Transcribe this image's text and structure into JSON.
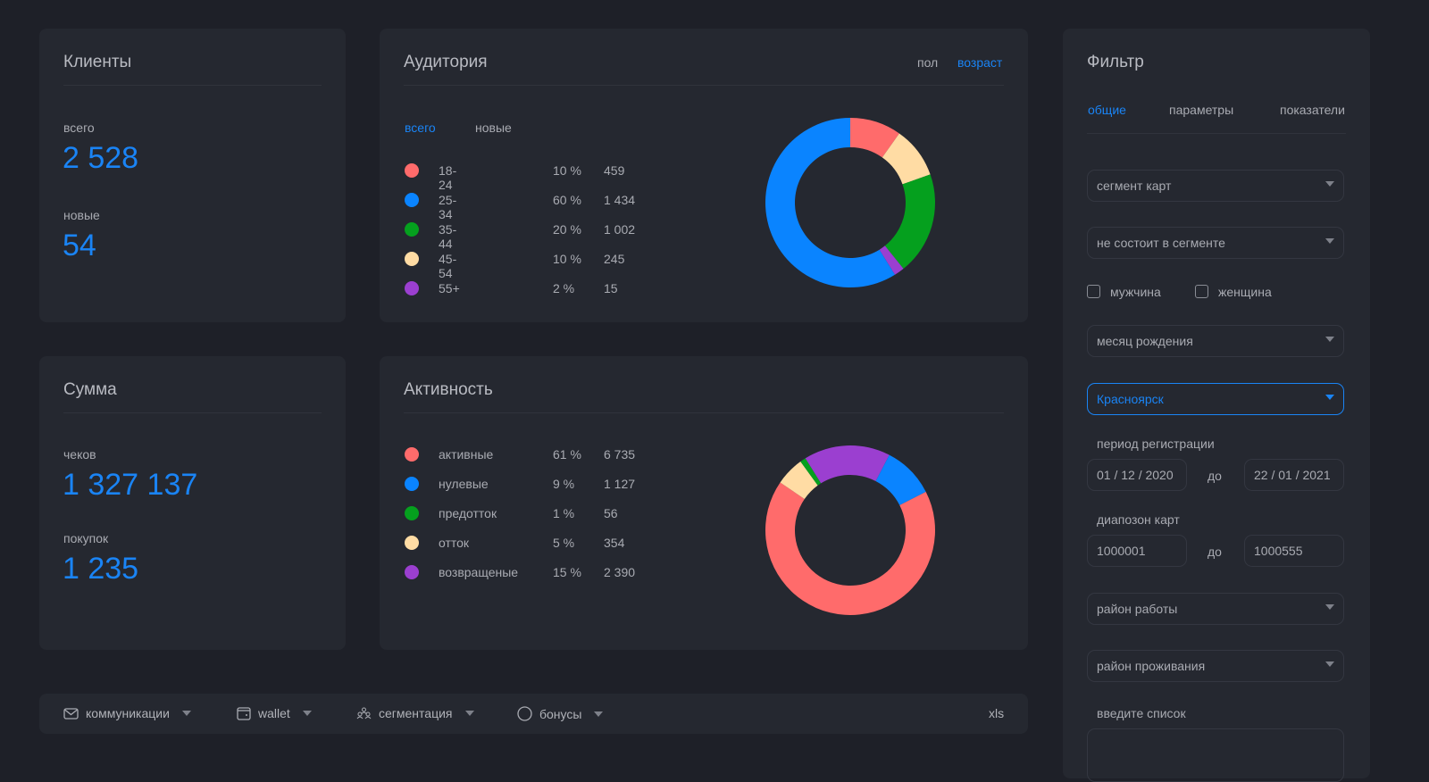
{
  "clients": {
    "title": "Клиенты",
    "total_label": "всего",
    "total": "2 528",
    "new_label": "новые",
    "new": "54"
  },
  "sum": {
    "title": "Сумма",
    "checks_label": "чеков",
    "checks": "1 327 137",
    "purchases_label": "покупок",
    "purchases": "1 235"
  },
  "audience": {
    "title": "Аудитория",
    "switch": [
      "пол",
      "возраст"
    ],
    "tabs": [
      "всего",
      "новые"
    ],
    "rows": [
      {
        "name": "18-24",
        "pct": "10 %",
        "value": "459",
        "color": "#ff6b6b"
      },
      {
        "name": "25-34",
        "pct": "60 %",
        "value": "1 434",
        "color": "#0a84ff"
      },
      {
        "name": "35-44",
        "pct": "20 %",
        "value": "1 002",
        "color": "#05a01e"
      },
      {
        "name": "45-54",
        "pct": "10 %",
        "value": "245",
        "color": "#ffdca4"
      },
      {
        "name": "55+",
        "pct": "2 %",
        "value": "15",
        "color": "#9b3fd0"
      }
    ]
  },
  "activity": {
    "title": "Активность",
    "rows": [
      {
        "name": "активные",
        "pct": "61 %",
        "value": "6 735",
        "color": "#ff6b6b"
      },
      {
        "name": "нулевые",
        "pct": "9 %",
        "value": "1 127",
        "color": "#0a84ff"
      },
      {
        "name": "предотток",
        "pct": "1 %",
        "value": "56",
        "color": "#05a01e"
      },
      {
        "name": "отток",
        "pct": "5 %",
        "value": "354",
        "color": "#ffdca4"
      },
      {
        "name": "возвращеные",
        "pct": "15 %",
        "value": "2 390",
        "color": "#9b3fd0"
      }
    ]
  },
  "chart_data": [
    {
      "type": "pie",
      "title": "Аудитория",
      "categories": [
        "18-24",
        "25-34",
        "35-44",
        "45-54",
        "55+"
      ],
      "values": [
        10,
        60,
        20,
        10,
        2
      ]
    },
    {
      "type": "pie",
      "title": "Активность",
      "categories": [
        "активные",
        "нулевые",
        "предотток",
        "отток",
        "возвращеные"
      ],
      "values": [
        61,
        9,
        1,
        5,
        15
      ]
    }
  ],
  "toolbar": {
    "items": [
      "коммуникации",
      "wallet",
      "сегментация",
      "бонусы"
    ],
    "xls": "xls"
  },
  "filter": {
    "title": "Фильтр",
    "tabs": [
      "общие",
      "параметры",
      "показатели"
    ],
    "segment": "сегмент карт",
    "not_in_segment": "не состоит в сегменте",
    "male": "мужчина",
    "female": "женщина",
    "birth_month": "месяц рождения",
    "city": "Красноярск",
    "reg_period_label": "период регистрации",
    "date_from": "01 / 12 / 2020",
    "to": "до",
    "date_to": "22 / 01 / 2021",
    "card_range_label": "диапозон карт",
    "card_from": "1000001",
    "card_to": "1000555",
    "work_district": "район работы",
    "home_district": "район проживания",
    "list_label": "введите список"
  }
}
